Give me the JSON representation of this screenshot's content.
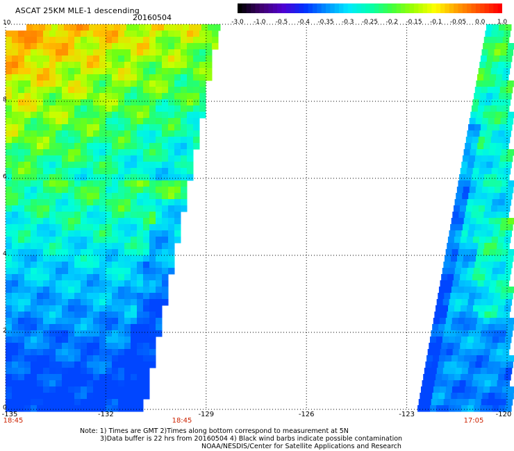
{
  "header": {
    "title": "ASCAT 25KM MLE-1 descending",
    "date": "20160504"
  },
  "colorbar": {
    "labels": [
      "-3.0",
      "-1.0",
      "-0.5",
      "-0.4",
      "-0.35",
      "-0.3",
      "-0.25",
      "-0.2",
      "-0.15",
      "-0.1",
      "-0.05",
      "0.0",
      "1.0"
    ],
    "colors": [
      "#000000",
      "#400070",
      "#5000d0",
      "#0030ff",
      "#0090ff",
      "#00e8ff",
      "#00ffb0",
      "#40ff40",
      "#a0ff00",
      "#ffff00",
      "#ffa000",
      "#ff5000",
      "#ff0000"
    ]
  },
  "axes": {
    "y_ticks": [
      "0",
      "2",
      "4",
      "6",
      "8",
      "10"
    ],
    "x_ticks": [
      "-135",
      "-132",
      "-129",
      "-126",
      "-123",
      "-120"
    ],
    "xlim": [
      -135,
      -120
    ],
    "ylim": [
      0,
      10
    ]
  },
  "time_labels": [
    "18:45",
    "18:45",
    "17:05"
  ],
  "notes": {
    "line1": "Note: 1) Times are GMT 2)Times along bottom correspond to measurement at 5N",
    "line2": "3)Data buffer is 22 hrs from 20160504 4) Black wind barbs indicate possible contamination",
    "line3": "NOAA/NESDIS/Center for Satellite Applications and Research"
  }
}
